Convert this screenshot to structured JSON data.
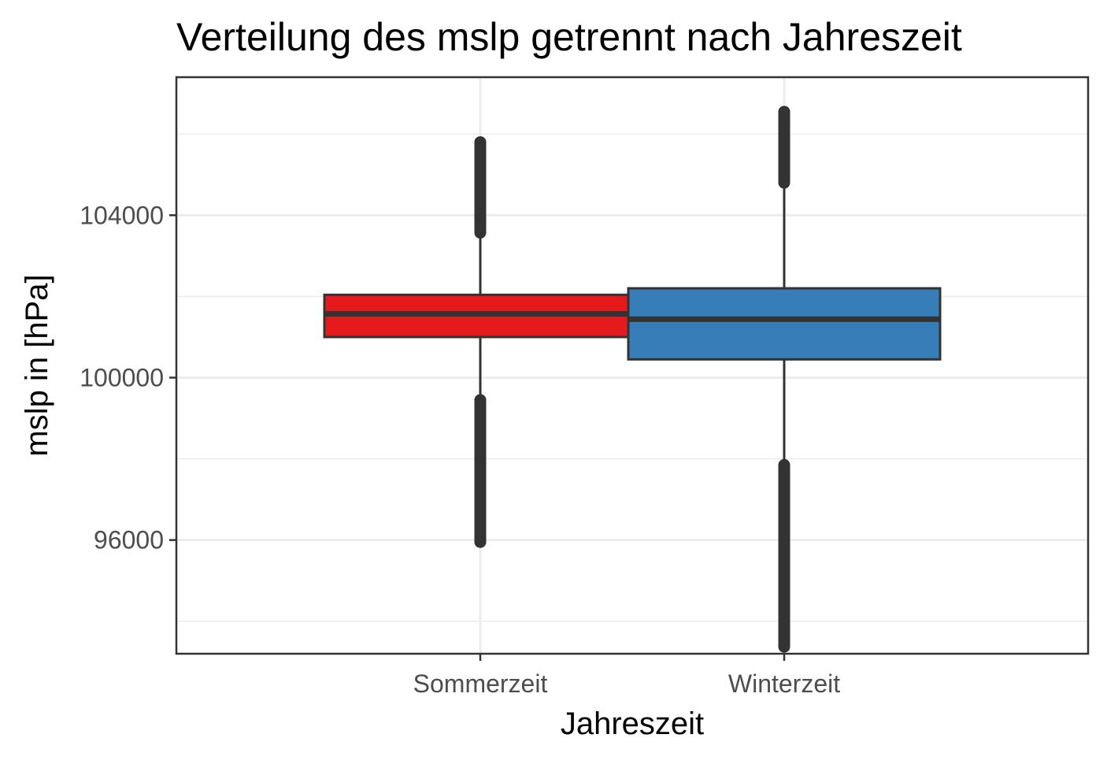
{
  "chart_data": {
    "type": "boxplot",
    "title": "Verteilung des mslp getrennt nach Jahreszeit",
    "xlabel": "Jahreszeit",
    "ylabel": "mslp in [hPa]",
    "categories": [
      "Sommerzeit",
      "Winterzeit"
    ],
    "ylim": [
      93200,
      107400
    ],
    "yticks": [
      96000,
      100000,
      104000
    ],
    "ytick_labels": [
      "96000",
      "100000",
      "104000"
    ],
    "grid": true,
    "legend": "none",
    "colors": {
      "Sommerzeit": "#e41a1c",
      "Winterzeit": "#377eb8",
      "outline": "#333333",
      "grid": "#ebebeb"
    },
    "boxes": [
      {
        "category": "Sommerzeit",
        "q1": 101000,
        "median": 101570,
        "q3": 102040,
        "whisker_low": 99450,
        "whisker_high": 103570,
        "outliers_low": [
          95950,
          99450
        ],
        "outliers_high": [
          103570,
          105800
        ]
      },
      {
        "category": "Winterzeit",
        "q1": 100450,
        "median": 101440,
        "q3": 102200,
        "whisker_low": 97850,
        "whisker_high": 104800,
        "outliers_low": [
          93370,
          97850
        ],
        "outliers_high": [
          104800,
          106550
        ]
      }
    ]
  }
}
